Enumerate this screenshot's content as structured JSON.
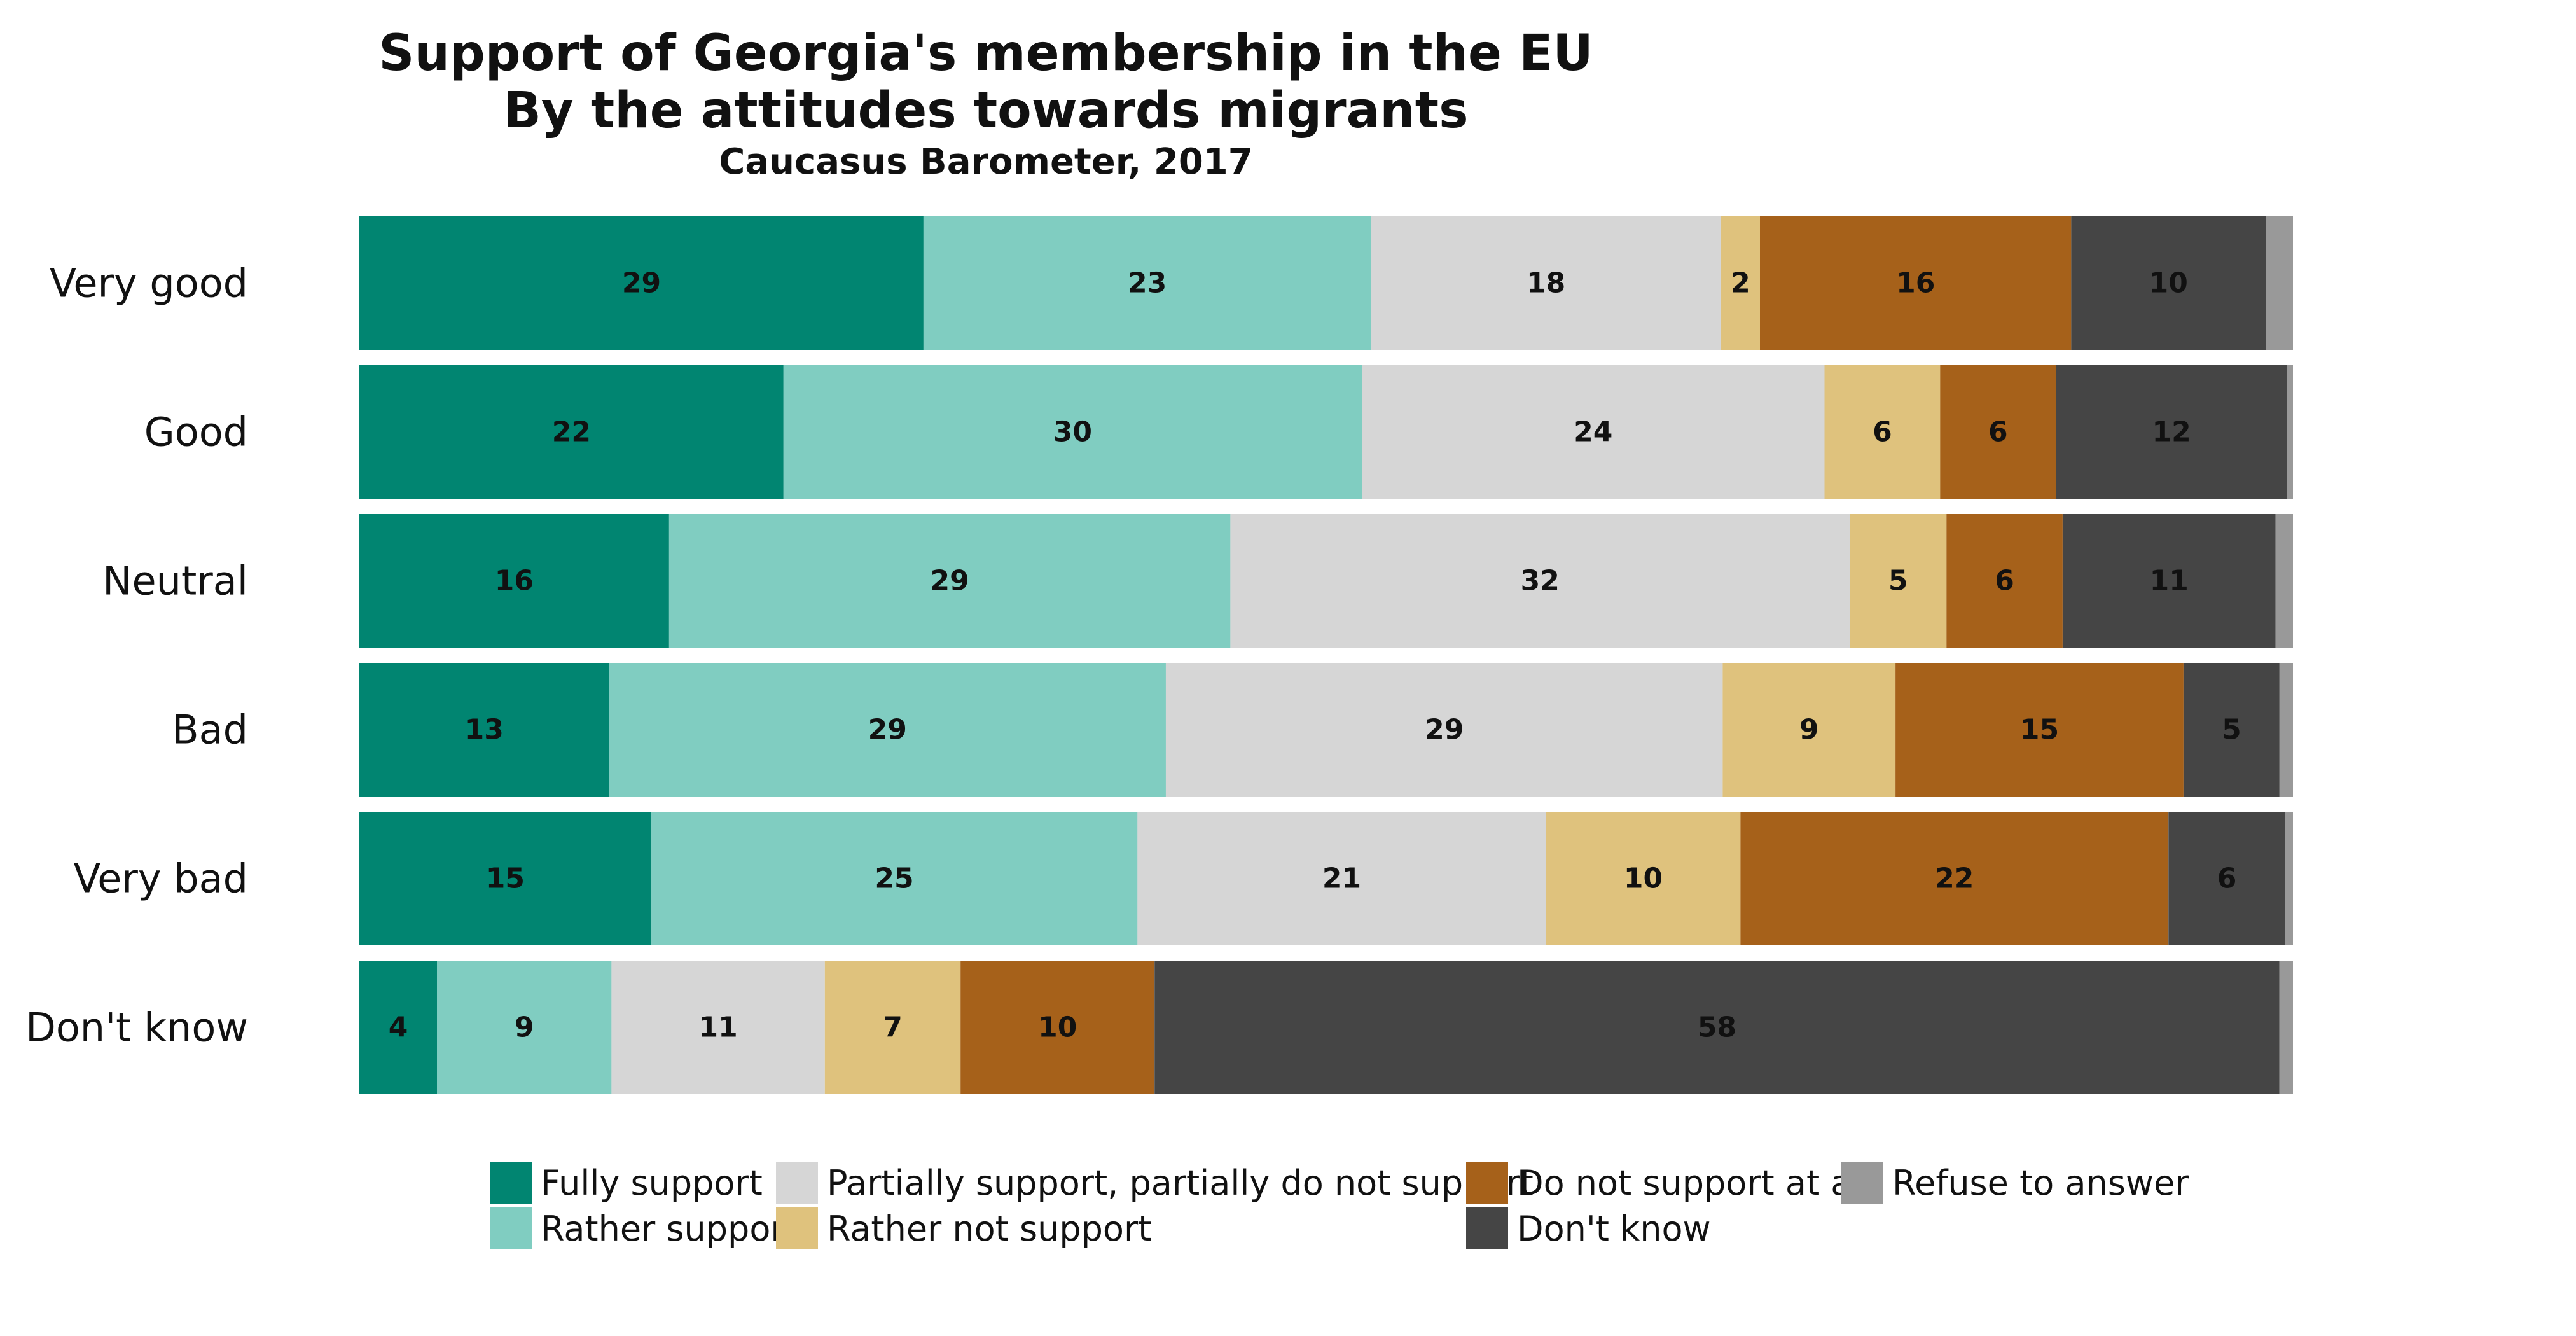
{
  "chart_data": {
    "type": "bar",
    "orientation": "horizontal",
    "stacked": true,
    "title": "Support of Georgia's membership in the EU",
    "subtitle": "By the attitudes towards migrants",
    "source": "Caucasus Barometer, 2017",
    "categories": [
      "Very good",
      "Good",
      "Neutral",
      "Bad",
      "Very bad",
      "Don't know"
    ],
    "series": [
      {
        "name": "Fully support",
        "color": "#018571",
        "values": [
          29,
          22,
          16,
          13,
          15,
          4
        ]
      },
      {
        "name": "Rather support",
        "color": "#80cdc1",
        "values": [
          23,
          30,
          29,
          29,
          25,
          9
        ]
      },
      {
        "name": "Partially support, partially do not support",
        "color": "#d6d6d6",
        "values": [
          18,
          24,
          32,
          29,
          21,
          11
        ]
      },
      {
        "name": "Rather not support",
        "color": "#dfc27d",
        "values": [
          2,
          6,
          5,
          9,
          10,
          7
        ]
      },
      {
        "name": "Do not support at all",
        "color": "#a6611a",
        "values": [
          16,
          6,
          6,
          15,
          22,
          10
        ]
      },
      {
        "name": "Don't know",
        "color": "#454545",
        "values": [
          10,
          12,
          11,
          5,
          6,
          58
        ]
      },
      {
        "name": "Refuse to answer",
        "color": "#999999",
        "values": [
          1.4,
          0.3,
          0.9,
          0.7,
          0.4,
          0.7
        ]
      }
    ],
    "value_labels_shown_for": [
      "Fully support",
      "Rather support",
      "Partially support, partially do not support",
      "Rather not support",
      "Do not support at all",
      "Don't know"
    ],
    "xlim": [
      0,
      100
    ],
    "grid": false,
    "legend_position": "bottom"
  },
  "legend": {
    "items": [
      {
        "label": "Fully support",
        "color": "#018571"
      },
      {
        "label": "Rather support",
        "color": "#80cdc1"
      },
      {
        "label": "Partially support, partially do not support",
        "color": "#d6d6d6"
      },
      {
        "label": "Rather not support",
        "color": "#dfc27d"
      },
      {
        "label": "Do not support at all",
        "color": "#a6611a"
      },
      {
        "label": "Don't know",
        "color": "#454545"
      },
      {
        "label": "Refuse to answer",
        "color": "#999999"
      }
    ]
  }
}
